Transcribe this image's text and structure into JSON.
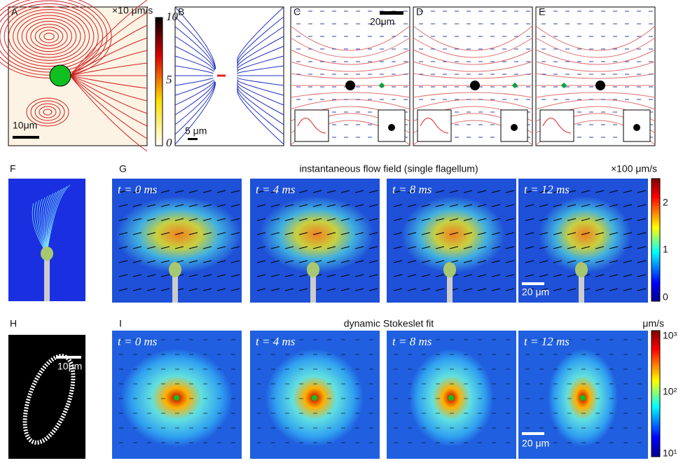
{
  "panel_labels": [
    "A",
    "B",
    "C",
    "D",
    "E",
    "F",
    "G",
    "H",
    "I"
  ],
  "A": {
    "colorbar_unit": "×10 μm/s",
    "colorbar_ticks": [
      "10",
      "5",
      "0"
    ],
    "scale_bar": "10μm"
  },
  "B": {
    "scale_bar": "5 μm"
  },
  "C": {
    "scale_bar": "20μm"
  },
  "G": {
    "title": "instantaneous flow field (single flagellum)",
    "colorbar_unit": "×100 μm/s",
    "colorbar_ticks": [
      "2",
      "1",
      "0"
    ],
    "times": [
      "t = 0 ms",
      "t = 4 ms",
      "t = 8 ms",
      "t = 12 ms"
    ],
    "scale_bar": "20 μm"
  },
  "H": {
    "scale_bar": "10μm"
  },
  "I": {
    "title": "dynamic Stokeslet fit",
    "colorbar_unit": "μm/s",
    "colorbar_ticks": [
      "10³",
      "10²",
      "10¹"
    ],
    "times": [
      "t = 0 ms",
      "t = 4 ms",
      "t = 8 ms",
      "t = 12 ms"
    ],
    "scale_bar": "20 μm"
  }
}
